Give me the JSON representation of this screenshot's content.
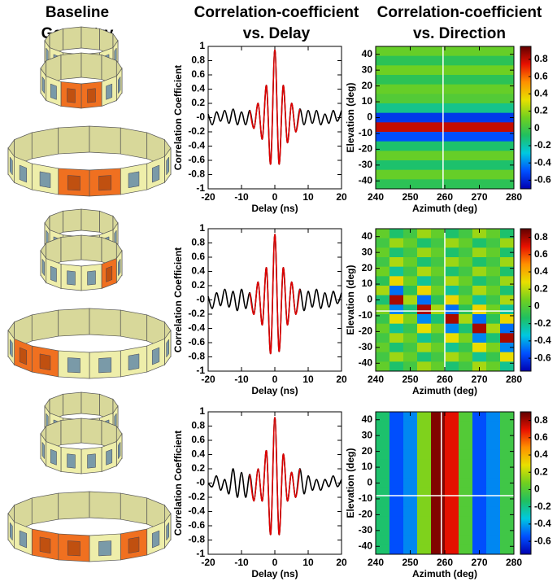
{
  "column_titles": [
    [
      "Baseline",
      "Geometry"
    ],
    [
      "Correlation-coefficient",
      "vs. Delay"
    ],
    [
      "Correlation-coefficient",
      "vs. Direction"
    ]
  ],
  "chart_data": [
    {
      "type": "line",
      "xlabel": "Delay (ns)",
      "ylabel": "Correlation Coefficient",
      "x": [
        -20,
        -18.75,
        -17.5,
        -16.25,
        -15,
        -13.75,
        -12.5,
        -11.25,
        -10,
        -8.75,
        -7.5,
        -6.25,
        -5,
        -3.75,
        -2.5,
        -1.25,
        0,
        1.25,
        2.5,
        3.75,
        5,
        6.25,
        7.5,
        8.75,
        10,
        11.25,
        12.5,
        13.75,
        15,
        16.25,
        17.5,
        18.75,
        20
      ],
      "series": [
        {
          "color": "#000000",
          "values": [
            0.05,
            -0.1,
            0.08,
            -0.05,
            0.1,
            -0.08,
            0.12,
            -0.1,
            0.08,
            -0.1,
            0.1,
            -0.15,
            0.2,
            -0.3,
            0.45,
            -0.65,
            0.95,
            -0.65,
            0.45,
            -0.35,
            0.2,
            -0.2,
            0.12,
            -0.1,
            0.1,
            -0.08,
            0.1,
            -0.1,
            0.05,
            -0.08,
            0.1,
            -0.05,
            0.1
          ]
        },
        {
          "color": "#e00000",
          "values": [
            null,
            null,
            null,
            null,
            null,
            null,
            null,
            null,
            null,
            null,
            0.1,
            -0.15,
            0.2,
            -0.3,
            0.45,
            -0.65,
            0.95,
            -0.65,
            0.45,
            -0.35,
            0.2,
            -0.2,
            0.12,
            null,
            null,
            null,
            null,
            null,
            null,
            null,
            null,
            null,
            null
          ]
        }
      ],
      "xlim": [
        -20,
        20
      ],
      "xticks": [
        -20,
        -10,
        0,
        10,
        20
      ],
      "ylim": [
        -1,
        1
      ],
      "yticks": [
        -1,
        -0.8,
        -0.6,
        -0.4,
        -0.2,
        {
          "value": 0,
          "label": "-0"
        },
        0.2,
        0.4,
        0.6,
        0.8,
        1
      ]
    },
    {
      "type": "heatmap",
      "xlabel": "Azimuth (deg)",
      "ylabel": "Elevation (deg)",
      "x": [
        242,
        246,
        250,
        254,
        258,
        262,
        266,
        270,
        274,
        278
      ],
      "y": [
        42,
        36,
        30,
        24,
        18,
        12,
        6,
        0,
        -6,
        -12,
        -18,
        -24,
        -30,
        -36,
        -42
      ],
      "z": [
        [
          0.1,
          0.1,
          0.1,
          0.1,
          0.1,
          0.1,
          0.1,
          0.1,
          0.1,
          0.1
        ],
        [
          -0.05,
          -0.05,
          -0.05,
          -0.05,
          -0.05,
          -0.05,
          -0.05,
          -0.05,
          -0.05,
          -0.05
        ],
        [
          0.12,
          0.12,
          0.12,
          0.12,
          0.12,
          0.12,
          0.12,
          0.12,
          0.12,
          0.12
        ],
        [
          -0.05,
          -0.05,
          -0.05,
          -0.05,
          -0.05,
          -0.05,
          -0.05,
          -0.05,
          -0.05,
          -0.05
        ],
        [
          0.1,
          0.1,
          0.1,
          0.1,
          0.1,
          0.1,
          0.1,
          0.1,
          0.1,
          0.1
        ],
        [
          0.05,
          0.05,
          0.05,
          0.05,
          0.05,
          0.05,
          0.05,
          0.05,
          0.05,
          0.05
        ],
        [
          -0.15,
          -0.15,
          -0.15,
          -0.15,
          -0.15,
          -0.15,
          -0.15,
          -0.15,
          -0.15,
          -0.15
        ],
        [
          -0.55,
          -0.55,
          -0.55,
          -0.55,
          -0.55,
          -0.55,
          -0.55,
          -0.55,
          -0.55,
          -0.55
        ],
        [
          0.8,
          0.8,
          0.8,
          0.8,
          0.8,
          0.8,
          0.8,
          0.8,
          0.8,
          0.8
        ],
        [
          -0.5,
          -0.5,
          -0.5,
          -0.5,
          -0.5,
          -0.5,
          -0.5,
          -0.5,
          -0.5,
          -0.5
        ],
        [
          -0.1,
          -0.1,
          -0.1,
          -0.1,
          -0.1,
          -0.1,
          -0.1,
          -0.1,
          -0.1,
          -0.1
        ],
        [
          0.1,
          0.1,
          0.1,
          0.1,
          0.1,
          0.1,
          0.1,
          0.1,
          0.1,
          0.1
        ],
        [
          -0.1,
          -0.1,
          -0.1,
          -0.1,
          -0.1,
          -0.1,
          -0.1,
          -0.1,
          -0.1,
          -0.1
        ],
        [
          0.1,
          0.1,
          0.1,
          0.1,
          0.1,
          0.1,
          0.1,
          0.1,
          0.1,
          0.1
        ],
        [
          -0.05,
          -0.05,
          -0.05,
          -0.05,
          -0.05,
          -0.05,
          -0.05,
          -0.05,
          -0.05,
          -0.05
        ]
      ],
      "xlim": [
        240,
        280
      ],
      "xticks": [
        240,
        250,
        260,
        270,
        280
      ],
      "ylim": [
        -45,
        45
      ],
      "yticks": [
        -40,
        -30,
        -20,
        -10,
        0,
        10,
        20,
        30,
        40
      ],
      "clim": [
        -0.7,
        0.95
      ],
      "cticks": [
        -0.6,
        -0.4,
        -0.2,
        0,
        0.2,
        0.4,
        0.6,
        0.8
      ],
      "colormap": [
        "#0000b0",
        "#0050ff",
        "#00c8e0",
        "#20c060",
        "#70d020",
        "#e8e000",
        "#ff9000",
        "#e81000",
        "#600000"
      ],
      "crosshair": {
        "x": 259.5
      }
    },
    {
      "type": "line",
      "xlabel": "Delay (ns)",
      "ylabel": "Correlation Coefficient",
      "x": [
        -20,
        -18.75,
        -17.5,
        -16.25,
        -15,
        -13.75,
        -12.5,
        -11.25,
        -10,
        -8.75,
        -7.5,
        -6.25,
        -5,
        -3.75,
        -2.5,
        -1.25,
        0,
        1.25,
        2.5,
        3.75,
        5,
        6.25,
        7.5,
        8.75,
        10,
        11.25,
        12.5,
        13.75,
        15,
        16.25,
        17.5,
        18.75,
        20
      ],
      "series": [
        {
          "color": "#000000",
          "values": [
            0.05,
            -0.12,
            0.1,
            -0.08,
            0.15,
            -0.1,
            0.12,
            -0.15,
            0.15,
            -0.12,
            0.1,
            -0.2,
            0.25,
            -0.35,
            0.45,
            -0.75,
            0.92,
            -0.72,
            0.45,
            -0.35,
            0.25,
            -0.2,
            0.15,
            -0.15,
            0.12,
            -0.1,
            0.15,
            -0.12,
            0.1,
            -0.1,
            0.12,
            -0.05,
            0.1
          ]
        },
        {
          "color": "#e00000",
          "values": [
            null,
            null,
            null,
            null,
            null,
            null,
            null,
            null,
            null,
            null,
            0.1,
            -0.2,
            0.25,
            -0.35,
            0.45,
            -0.75,
            0.92,
            -0.72,
            0.45,
            -0.35,
            0.25,
            -0.2,
            0.15,
            null,
            null,
            null,
            null,
            null,
            null,
            null,
            null,
            null,
            null
          ]
        }
      ],
      "xlim": [
        -20,
        20
      ],
      "xticks": [
        -20,
        -10,
        0,
        10,
        20
      ],
      "ylim": [
        -1,
        1
      ],
      "yticks": [
        -1,
        -0.8,
        -0.6,
        -0.4,
        -0.2,
        {
          "value": 0,
          "label": "-0"
        },
        0.2,
        0.4,
        0.6,
        0.8,
        1
      ]
    },
    {
      "type": "heatmap",
      "xlabel": "Azimuth (deg)",
      "ylabel": "Elevation (deg)",
      "x": [
        242,
        246,
        250,
        254,
        258,
        262,
        266,
        270,
        274,
        278
      ],
      "y": [
        42,
        36,
        30,
        24,
        18,
        12,
        6,
        0,
        -6,
        -12,
        -18,
        -24,
        -30,
        -36,
        -42
      ],
      "z": [
        [
          0.04,
          -0.15,
          -0.04,
          0.15,
          0.04,
          -0.15,
          -0.04,
          0.15,
          0.04,
          -0.15
        ],
        [
          -0.04,
          0.15,
          0.04,
          -0.15,
          -0.04,
          0.15,
          0.04,
          -0.15,
          -0.04,
          0.15
        ],
        [
          0.05,
          -0.16,
          -0.04,
          0.15,
          0.04,
          -0.15,
          -0.04,
          0.15,
          0.04,
          -0.15
        ],
        [
          -0.05,
          0.18,
          0.05,
          -0.16,
          -0.04,
          0.15,
          0.04,
          -0.15,
          -0.04,
          0.15
        ],
        [
          0.07,
          -0.22,
          -0.05,
          0.18,
          0.05,
          -0.16,
          -0.04,
          0.15,
          0.04,
          -0.15
        ],
        [
          -0.1,
          0.31,
          0.07,
          -0.22,
          -0.05,
          0.18,
          0.05,
          -0.16,
          -0.04,
          0.15
        ],
        [
          0.17,
          -0.49,
          -0.1,
          0.31,
          0.07,
          -0.22,
          -0.05,
          0.18,
          0.05,
          -0.16
        ],
        [
          -0.16,
          0.79,
          0.17,
          -0.49,
          -0.1,
          0.31,
          0.07,
          -0.22,
          -0.05,
          0.18
        ],
        [
          0.09,
          -0.45,
          -0.16,
          0.79,
          0.17,
          -0.49,
          -0.1,
          0.31,
          0.07,
          -0.22
        ],
        [
          -0.07,
          0.29,
          0.09,
          -0.45,
          -0.16,
          0.79,
          0.17,
          -0.49,
          -0.1,
          0.31
        ],
        [
          0.05,
          -0.21,
          -0.07,
          0.29,
          0.09,
          -0.45,
          -0.16,
          0.79,
          0.17,
          -0.49
        ],
        [
          -0.04,
          0.17,
          0.05,
          -0.21,
          -0.07,
          0.29,
          0.09,
          -0.45,
          -0.16,
          0.79
        ],
        [
          0.04,
          -0.16,
          -0.04,
          0.17,
          0.05,
          -0.21,
          -0.07,
          0.29,
          0.09,
          -0.45
        ],
        [
          -0.04,
          0.15,
          0.04,
          -0.16,
          -0.04,
          0.17,
          0.05,
          -0.21,
          -0.07,
          0.29
        ],
        [
          0.04,
          -0.15,
          -0.04,
          0.15,
          0.04,
          -0.16,
          -0.04,
          0.17,
          0.05,
          -0.21
        ]
      ],
      "xlim": [
        240,
        280
      ],
      "xticks": [
        240,
        250,
        260,
        270,
        280
      ],
      "ylim": [
        -45,
        45
      ],
      "yticks": [
        -40,
        -30,
        -20,
        -10,
        0,
        10,
        20,
        30,
        40
      ],
      "clim": [
        -0.75,
        0.9
      ],
      "cticks": [
        -0.6,
        -0.4,
        -0.2,
        0,
        0.2,
        0.4,
        0.6,
        0.8
      ],
      "colormap": [
        "#0000b0",
        "#0050ff",
        "#00c8e0",
        "#20c060",
        "#70d020",
        "#e8e000",
        "#ff9000",
        "#e81000",
        "#600000"
      ],
      "crosshair": {
        "x": 260,
        "y": -7
      }
    },
    {
      "type": "line",
      "xlabel": "Delay (ns)",
      "ylabel": "Correlation Coefficient",
      "x": [
        -20,
        -18.75,
        -17.5,
        -16.25,
        -15,
        -13.75,
        -12.5,
        -11.25,
        -10,
        -8.75,
        -7.5,
        -6.25,
        -5,
        -3.75,
        -2.5,
        -1.25,
        0,
        1.25,
        2.5,
        3.75,
        5,
        6.25,
        7.5,
        8.75,
        10,
        11.25,
        12.5,
        13.75,
        15,
        16.25,
        17.5,
        18.75,
        20
      ],
      "series": [
        {
          "color": "#000000",
          "values": [
            0,
            -0.05,
            0.1,
            -0.1,
            0.05,
            -0.15,
            0.2,
            -0.2,
            0.15,
            -0.2,
            0.12,
            -0.25,
            0.2,
            -0.25,
            0.45,
            -0.72,
            0.92,
            -0.72,
            0.4,
            -0.25,
            0.15,
            -0.2,
            0.2,
            -0.15,
            0.1,
            -0.1,
            0.05,
            -0.1,
            0.05,
            -0.05,
            0.1,
            -0.05,
            0.05
          ]
        },
        {
          "color": "#e00000",
          "values": [
            null,
            null,
            null,
            null,
            null,
            null,
            null,
            null,
            null,
            null,
            0.12,
            -0.25,
            0.2,
            -0.25,
            0.45,
            -0.72,
            0.92,
            -0.72,
            0.4,
            -0.25,
            0.15,
            -0.2,
            0.2,
            null,
            null,
            null,
            null,
            null,
            null,
            null,
            null,
            null,
            null
          ]
        }
      ],
      "xlim": [
        -20,
        20
      ],
      "xticks": [
        -20,
        -10,
        0,
        10,
        20
      ],
      "ylim": [
        -1,
        1
      ],
      "yticks": [
        -1,
        -0.8,
        -0.6,
        -0.4,
        -0.2,
        {
          "value": 0,
          "label": "-0"
        },
        0.2,
        0.4,
        0.6,
        0.8,
        1
      ]
    },
    {
      "type": "heatmap",
      "xlabel": "Azimuth (deg)",
      "ylabel": "Elevation (deg)",
      "x": [
        242,
        246,
        250,
        254,
        258,
        262,
        266,
        270,
        274,
        278
      ],
      "y": [
        42,
        36,
        30,
        24,
        18,
        12,
        6,
        0,
        -6,
        -12,
        -18,
        -24,
        -30,
        -36,
        -42
      ],
      "z": [
        [
          -0.15,
          -0.55,
          -0.45,
          0.1,
          0.85,
          0.7,
          0,
          -0.55,
          -0.45,
          -0.05
        ],
        [
          -0.15,
          -0.55,
          -0.45,
          0.1,
          0.85,
          0.7,
          0,
          -0.55,
          -0.45,
          -0.05
        ],
        [
          -0.15,
          -0.55,
          -0.45,
          0.1,
          0.85,
          0.7,
          0,
          -0.55,
          -0.45,
          -0.05
        ],
        [
          -0.15,
          -0.55,
          -0.45,
          0.1,
          0.85,
          0.7,
          0,
          -0.55,
          -0.45,
          -0.05
        ],
        [
          -0.15,
          -0.55,
          -0.45,
          0.1,
          0.85,
          0.7,
          0,
          -0.55,
          -0.45,
          -0.05
        ],
        [
          -0.15,
          -0.55,
          -0.45,
          0.1,
          0.85,
          0.7,
          0,
          -0.55,
          -0.45,
          -0.05
        ],
        [
          -0.15,
          -0.55,
          -0.45,
          0.1,
          0.85,
          0.7,
          0,
          -0.55,
          -0.45,
          -0.05
        ],
        [
          -0.15,
          -0.55,
          -0.45,
          0.1,
          0.85,
          0.7,
          0,
          -0.55,
          -0.45,
          -0.05
        ],
        [
          -0.15,
          -0.55,
          -0.45,
          0.1,
          0.85,
          0.7,
          0,
          -0.55,
          -0.45,
          -0.05
        ],
        [
          -0.15,
          -0.55,
          -0.45,
          0.1,
          0.85,
          0.7,
          0,
          -0.55,
          -0.45,
          -0.05
        ],
        [
          -0.15,
          -0.55,
          -0.45,
          0.1,
          0.85,
          0.7,
          0,
          -0.55,
          -0.45,
          -0.05
        ],
        [
          -0.15,
          -0.55,
          -0.45,
          0.1,
          0.85,
          0.7,
          0,
          -0.55,
          -0.45,
          -0.05
        ],
        [
          -0.15,
          -0.55,
          -0.45,
          0.1,
          0.85,
          0.7,
          0,
          -0.55,
          -0.45,
          -0.05
        ],
        [
          -0.15,
          -0.55,
          -0.45,
          0.1,
          0.85,
          0.7,
          0,
          -0.55,
          -0.45,
          -0.05
        ],
        [
          -0.15,
          -0.55,
          -0.45,
          0.1,
          0.85,
          0.7,
          0,
          -0.55,
          -0.45,
          -0.05
        ]
      ],
      "xlim": [
        240,
        280
      ],
      "xticks": [
        240,
        250,
        260,
        270,
        280
      ],
      "ylim": [
        -45,
        45
      ],
      "yticks": [
        -40,
        -30,
        -20,
        -10,
        0,
        10,
        20,
        30,
        40
      ],
      "clim": [
        -0.75,
        0.9
      ],
      "cticks": [
        -0.6,
        -0.4,
        -0.2,
        0,
        0.2,
        0.4,
        0.6,
        0.8
      ],
      "colormap": [
        "#0000b0",
        "#0050ff",
        "#00c8e0",
        "#20c060",
        "#70d020",
        "#e8e000",
        "#ff9000",
        "#e81000",
        "#600000"
      ],
      "crosshair": {
        "x": 259,
        "y": -8
      }
    }
  ]
}
